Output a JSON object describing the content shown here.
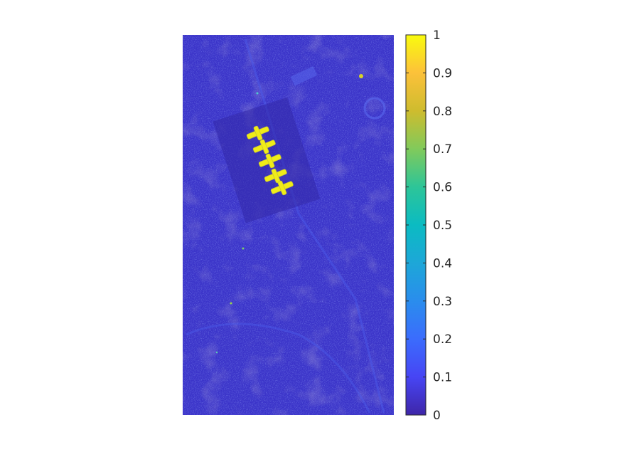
{
  "chart_data": {
    "type": "heatmap",
    "title": "",
    "xlabel": "",
    "ylabel": "",
    "colormap": "parula",
    "clim": [
      0,
      1
    ],
    "colorbar": {
      "ticks": [
        0,
        0.1,
        0.2,
        0.3,
        0.4,
        0.5,
        0.6,
        0.7,
        0.8,
        0.9,
        1
      ],
      "tick_labels": [
        "0",
        "0.1",
        "0.2",
        "0.3",
        "0.4",
        "0.5",
        "0.6",
        "0.7",
        "0.8",
        "0.9",
        "1"
      ]
    },
    "background_value": 0.08,
    "highlight_value": 0.95,
    "highlight_region": "five H-shaped building blocks near upper-left of image",
    "colors": {
      "low": "#3e26a8",
      "mid_low": "#4353e0",
      "mid": "#23b8c8",
      "mid_high": "#8bc63b",
      "high": "#f9fb0e"
    }
  }
}
